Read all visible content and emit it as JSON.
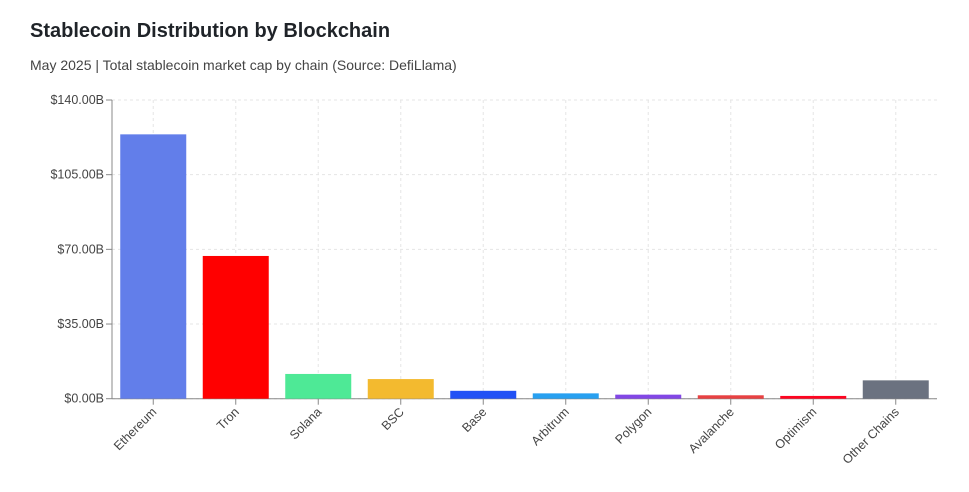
{
  "chart_data": {
    "type": "bar",
    "title": "Stablecoin Distribution by Blockchain",
    "subtitle": "May 2025 | Total stablecoin market cap by chain (Source: DefiLlama)",
    "categories": [
      "Ethereum",
      "Tron",
      "Solana",
      "BSC",
      "Base",
      "Arbitrum",
      "Polygon",
      "Avalanche",
      "Optimism",
      "Other Chains"
    ],
    "values": [
      123.9,
      66.9,
      11.6,
      9.2,
      3.7,
      2.5,
      1.9,
      1.6,
      1.3,
      8.6
    ],
    "colors": [
      "#627eea",
      "#ff0000",
      "#4ee996",
      "#f3ba2f",
      "#2151f5",
      "#28a0f0",
      "#8247e5",
      "#e84142",
      "#ff0420",
      "#6b7280"
    ],
    "ylim": [
      0,
      140
    ],
    "yticks": [
      0,
      35,
      70,
      105,
      140
    ],
    "ytick_labels": [
      "$0.00B",
      "$35.00B",
      "$70.00B",
      "$105.00B",
      "$140.00B"
    ],
    "unit": "billion USD",
    "grid": true,
    "xlabel": "",
    "ylabel": ""
  }
}
